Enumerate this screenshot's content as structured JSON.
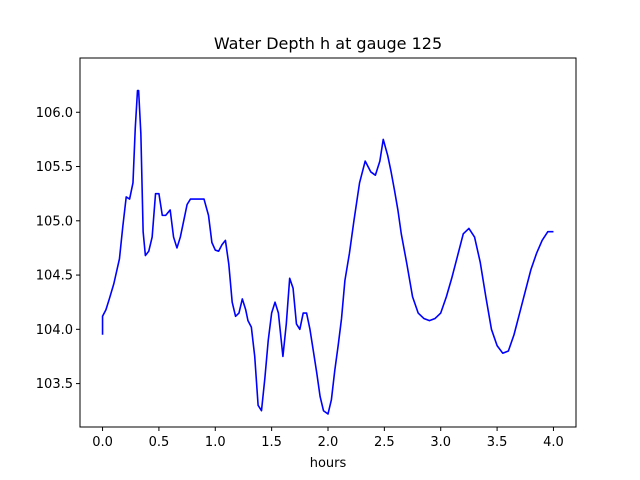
{
  "chart_data": {
    "type": "line",
    "title": "Water Depth h at gauge 125",
    "xlabel": "hours",
    "ylabel": "",
    "xlim": [
      -0.2,
      4.2
    ],
    "ylim": [
      103.1,
      106.5
    ],
    "xticks": [
      0.0,
      0.5,
      1.0,
      1.5,
      2.0,
      2.5,
      3.0,
      3.5,
      4.0
    ],
    "xtick_labels": [
      "0.0",
      "0.5",
      "1.0",
      "1.5",
      "2.0",
      "2.5",
      "3.0",
      "3.5",
      "4.0"
    ],
    "yticks": [
      103.5,
      104.0,
      104.5,
      105.0,
      105.5,
      106.0
    ],
    "ytick_labels": [
      "103.5",
      "104.0",
      "104.5",
      "105.0",
      "105.5",
      "106.0"
    ],
    "grid": false,
    "series": [
      {
        "color": "#0000ff",
        "x": [
          0.0,
          0.0,
          0.03,
          0.06,
          0.1,
          0.15,
          0.18,
          0.21,
          0.24,
          0.27,
          0.29,
          0.31,
          0.32,
          0.34,
          0.36,
          0.38,
          0.41,
          0.44,
          0.47,
          0.5,
          0.53,
          0.56,
          0.6,
          0.63,
          0.66,
          0.69,
          0.72,
          0.75,
          0.78,
          0.81,
          0.85,
          0.9,
          0.94,
          0.97,
          1.0,
          1.03,
          1.06,
          1.09,
          1.12,
          1.15,
          1.18,
          1.21,
          1.24,
          1.27,
          1.29,
          1.32,
          1.35,
          1.38,
          1.41,
          1.44,
          1.47,
          1.5,
          1.53,
          1.56,
          1.6,
          1.63,
          1.66,
          1.69,
          1.72,
          1.75,
          1.78,
          1.81,
          1.84,
          1.87,
          1.9,
          1.93,
          1.96,
          2.0,
          2.03,
          2.06,
          2.09,
          2.12,
          2.15,
          2.19,
          2.23,
          2.28,
          2.33,
          2.38,
          2.42,
          2.46,
          2.49,
          2.53,
          2.56,
          2.59,
          2.62,
          2.65,
          2.7,
          2.75,
          2.8,
          2.85,
          2.9,
          2.95,
          3.0,
          3.05,
          3.1,
          3.15,
          3.2,
          3.25,
          3.3,
          3.35,
          3.4,
          3.45,
          3.5,
          3.55,
          3.6,
          3.65,
          3.7,
          3.75,
          3.8,
          3.85,
          3.9,
          3.95,
          4.0
        ],
        "values": [
          103.95,
          104.12,
          104.18,
          104.28,
          104.42,
          104.65,
          104.95,
          105.22,
          105.2,
          105.35,
          105.85,
          106.2,
          106.2,
          105.8,
          104.9,
          104.68,
          104.72,
          104.85,
          105.25,
          105.25,
          105.05,
          105.05,
          105.1,
          104.85,
          104.75,
          104.85,
          105.0,
          105.15,
          105.2,
          105.2,
          105.2,
          105.2,
          105.05,
          104.8,
          104.73,
          104.72,
          104.78,
          104.82,
          104.6,
          104.25,
          104.12,
          104.15,
          104.28,
          104.18,
          104.08,
          104.02,
          103.75,
          103.3,
          103.25,
          103.55,
          103.9,
          104.15,
          104.25,
          104.15,
          103.75,
          104.05,
          104.47,
          104.38,
          104.05,
          104.0,
          104.15,
          104.15,
          104.0,
          103.8,
          103.6,
          103.38,
          103.25,
          103.22,
          103.35,
          103.62,
          103.85,
          104.1,
          104.45,
          104.7,
          105.0,
          105.35,
          105.55,
          105.45,
          105.42,
          105.55,
          105.75,
          105.6,
          105.45,
          105.28,
          105.1,
          104.88,
          104.6,
          104.3,
          104.15,
          104.1,
          104.08,
          104.1,
          104.15,
          104.3,
          104.48,
          104.68,
          104.88,
          104.93,
          104.85,
          104.62,
          104.3,
          104.0,
          103.85,
          103.78,
          103.8,
          103.95,
          104.15,
          104.35,
          104.55,
          104.7,
          104.82,
          104.9,
          104.9
        ]
      }
    ]
  }
}
